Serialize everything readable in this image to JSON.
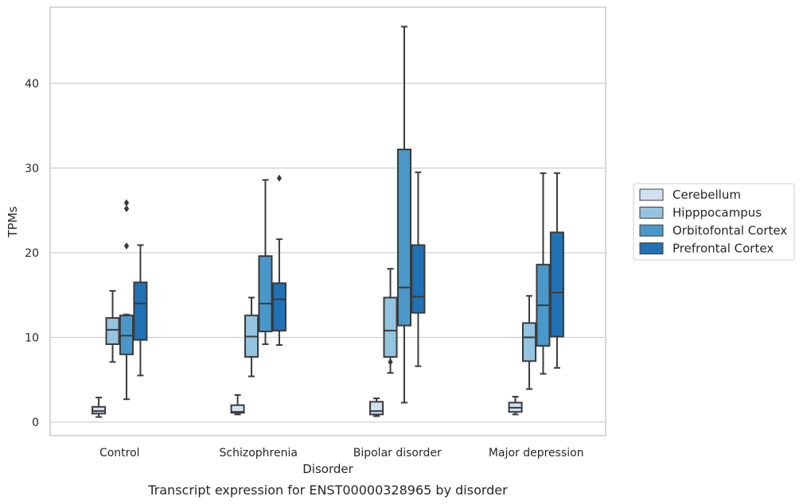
{
  "caption": "Transcript expression for ENST00000328965 by disorder",
  "chart_data": {
    "type": "box",
    "title": "",
    "xlabel": "Disorder",
    "ylabel": "TPMs",
    "ylim": [
      -1.6,
      49
    ],
    "yticks": [
      0,
      10,
      20,
      30,
      40
    ],
    "grid": "horizontal",
    "legend_position": "right",
    "categories": [
      "Control",
      "Schizophrenia",
      "Bipolar disorder",
      "Major depression"
    ],
    "series": [
      {
        "name": "Cerebellum",
        "color": "#d0e1f2",
        "boxes": [
          {
            "whislo": 0.6,
            "q1": 1.0,
            "med": 1.3,
            "q3": 1.8,
            "whishi": 2.9,
            "fliers": []
          },
          {
            "whislo": 0.9,
            "q1": 1.1,
            "med": 1.2,
            "q3": 2.0,
            "whishi": 3.2,
            "fliers": []
          },
          {
            "whislo": 0.7,
            "q1": 0.9,
            "med": 1.3,
            "q3": 2.4,
            "whishi": 2.8,
            "fliers": []
          },
          {
            "whislo": 0.9,
            "q1": 1.2,
            "med": 1.7,
            "q3": 2.3,
            "whishi": 3.0,
            "fliers": []
          }
        ]
      },
      {
        "name": "Hipppocampus",
        "color": "#94c4df",
        "boxes": [
          {
            "whislo": 7.1,
            "q1": 9.2,
            "med": 10.9,
            "q3": 12.3,
            "whishi": 15.5,
            "fliers": []
          },
          {
            "whislo": 5.4,
            "q1": 7.7,
            "med": 10.1,
            "q3": 12.6,
            "whishi": 14.7,
            "fliers": []
          },
          {
            "whislo": 5.8,
            "q1": 7.7,
            "med": 10.8,
            "q3": 14.7,
            "whishi": 18.1,
            "fliers": [
              7.1
            ]
          },
          {
            "whislo": 3.9,
            "q1": 7.2,
            "med": 10.0,
            "q3": 11.7,
            "whishi": 14.9,
            "fliers": []
          }
        ]
      },
      {
        "name": "Orbitofontal Cortex",
        "color": "#4a98c9",
        "boxes": [
          {
            "whislo": 2.7,
            "q1": 8.0,
            "med": 10.2,
            "q3": 12.6,
            "whishi": 12.7,
            "fliers": [
              20.8,
              25.2,
              25.9
            ]
          },
          {
            "whislo": 9.2,
            "q1": 10.7,
            "med": 14.0,
            "q3": 19.6,
            "whishi": 28.6,
            "fliers": []
          },
          {
            "whislo": 2.3,
            "q1": 11.4,
            "med": 15.9,
            "q3": 32.2,
            "whishi": 46.7,
            "fliers": []
          },
          {
            "whislo": 5.7,
            "q1": 9.0,
            "med": 13.8,
            "q3": 18.6,
            "whishi": 29.4,
            "fliers": []
          }
        ]
      },
      {
        "name": "Prefrontal Cortex",
        "color": "#2171b5",
        "boxes": [
          {
            "whislo": 5.5,
            "q1": 9.7,
            "med": 14.0,
            "q3": 16.5,
            "whishi": 20.9,
            "fliers": []
          },
          {
            "whislo": 9.1,
            "q1": 10.8,
            "med": 14.5,
            "q3": 16.4,
            "whishi": 21.6,
            "fliers": [
              28.8
            ]
          },
          {
            "whislo": 6.6,
            "q1": 12.9,
            "med": 14.8,
            "q3": 20.9,
            "whishi": 29.5,
            "fliers": []
          },
          {
            "whislo": 6.4,
            "q1": 10.1,
            "med": 15.3,
            "q3": 22.4,
            "whishi": 29.4,
            "fliers": []
          }
        ]
      }
    ]
  }
}
